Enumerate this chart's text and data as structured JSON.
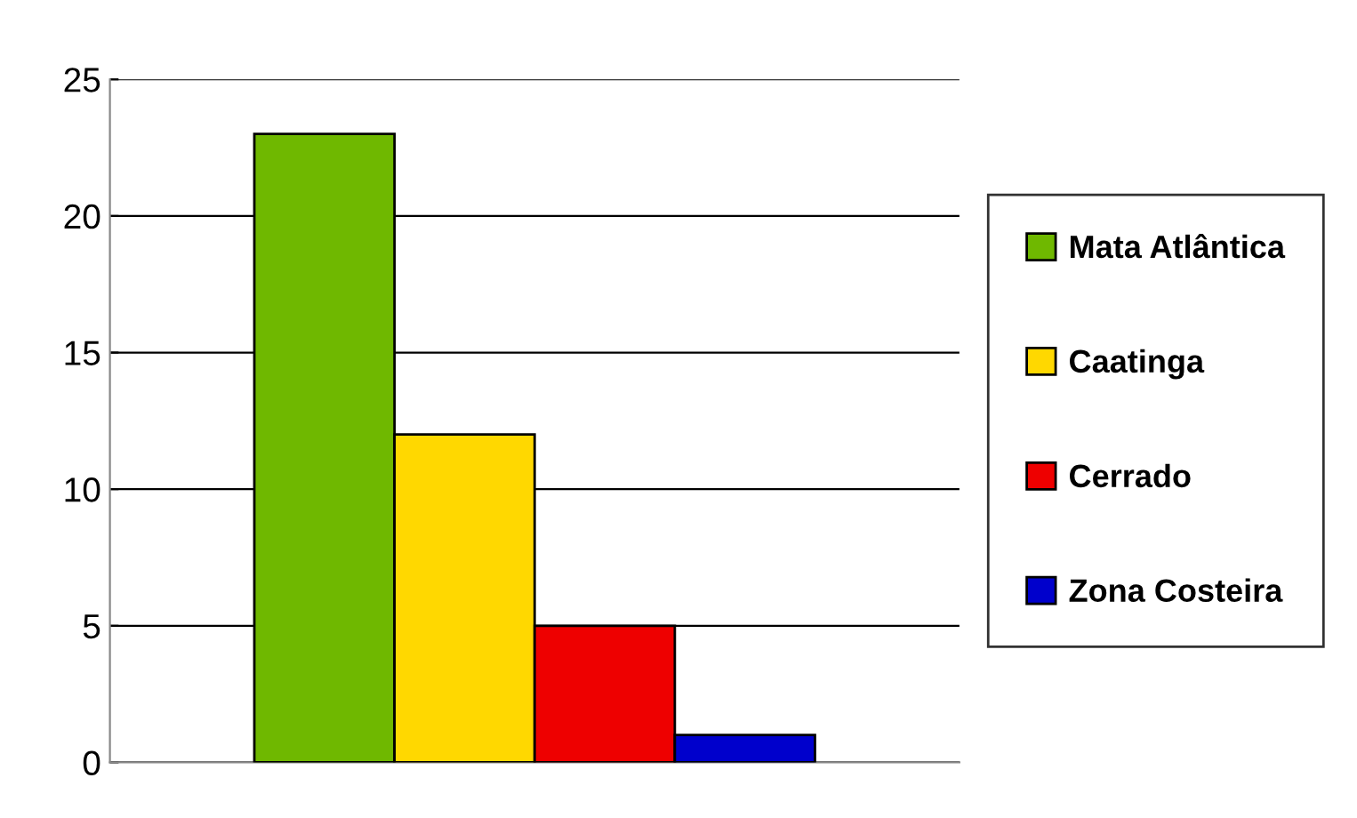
{
  "chart_data": {
    "type": "bar",
    "categories": [
      null
    ],
    "series": [
      {
        "name": "Mata Atlântica",
        "color": "#6fb800",
        "values": [
          23
        ]
      },
      {
        "name": "Caatinga",
        "color": "#ffd800",
        "values": [
          12
        ]
      },
      {
        "name": "Cerrado",
        "color": "#ee0000",
        "values": [
          5
        ]
      },
      {
        "name": "Zona Costeira",
        "color": "#0000cc",
        "values": [
          1
        ]
      }
    ],
    "ylim": [
      0,
      25
    ],
    "yticks": [
      0,
      5,
      10,
      15,
      20,
      25
    ],
    "grid": "y",
    "legend": "right"
  }
}
